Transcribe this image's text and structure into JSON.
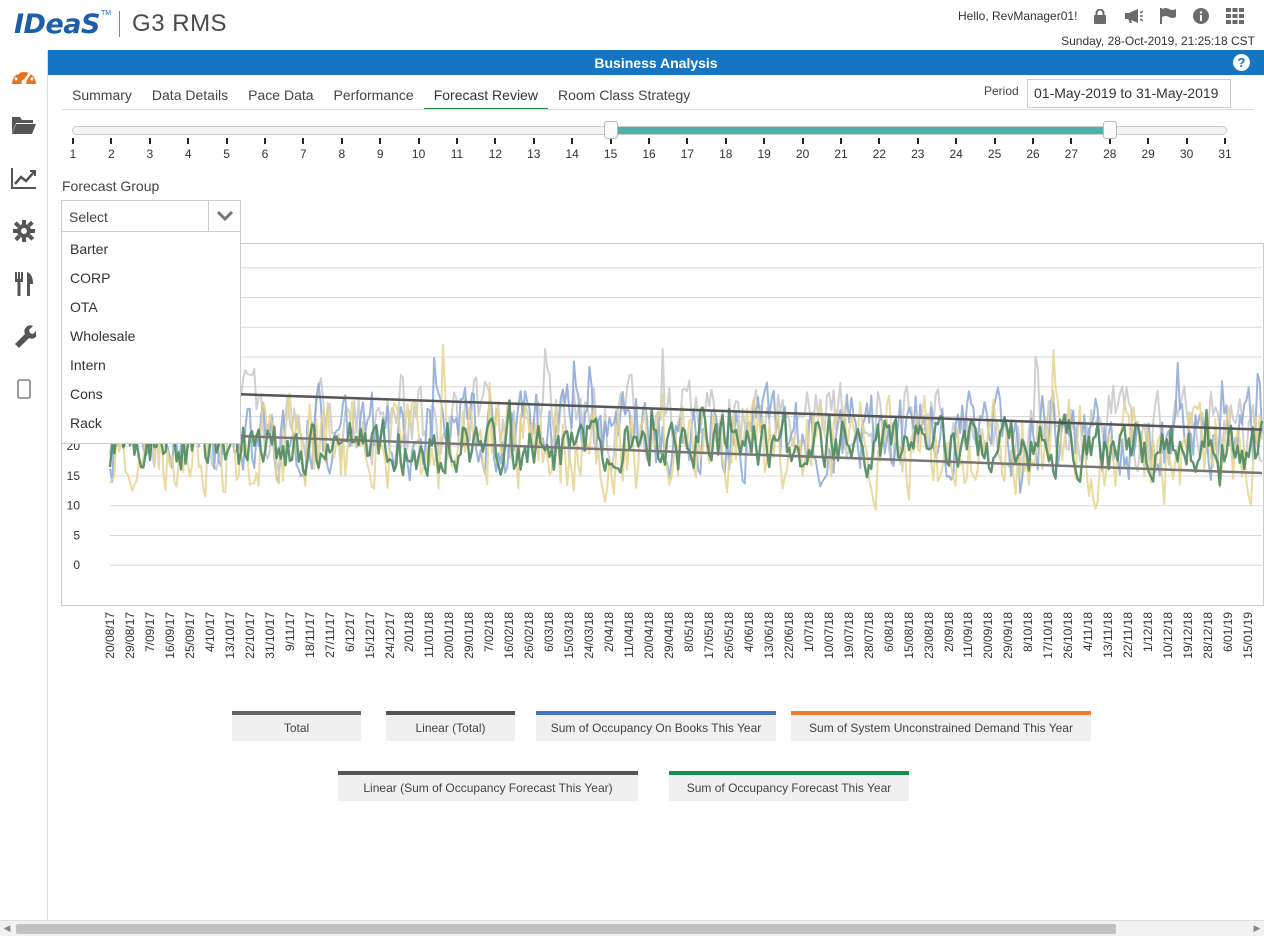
{
  "brand": {
    "logo_text": "IDeaS",
    "product": "G3 RMS"
  },
  "header": {
    "greeting": "Hello, RevManager01!",
    "datetime": "Sunday, 28-Oct-2019, 21:25:18 CST",
    "icons": [
      "lock-icon",
      "megaphone-icon",
      "flag-icon",
      "info-icon",
      "apps-grid-icon"
    ]
  },
  "sidebar": {
    "items": [
      {
        "icon": "dashboard-gauge-icon",
        "color": "#e8731f"
      },
      {
        "icon": "folder-icon",
        "color": "#555555"
      },
      {
        "icon": "chart-line-icon",
        "color": "#555555"
      },
      {
        "icon": "gear-icon",
        "color": "#555555"
      },
      {
        "icon": "fork-knife-icon",
        "color": "#555555"
      },
      {
        "icon": "wrench-icon",
        "color": "#555555"
      },
      {
        "icon": "mobile-icon",
        "color": "#555555"
      }
    ]
  },
  "page": {
    "title": "Business Analysis",
    "help": "?"
  },
  "tabs": [
    {
      "label": "Summary",
      "active": false
    },
    {
      "label": "Data Details",
      "active": false
    },
    {
      "label": "Pace Data",
      "active": false
    },
    {
      "label": "Performance",
      "active": false
    },
    {
      "label": "Forecast Review",
      "active": true
    },
    {
      "label": "Room Class Strategy",
      "active": false
    }
  ],
  "period": {
    "label": "Period",
    "value": "01-May-2019 to 31-May-2019"
  },
  "slider": {
    "ticks": [
      "1",
      "2",
      "3",
      "4",
      "5",
      "6",
      "7",
      "8",
      "9",
      "10",
      "11",
      "12",
      "13",
      "14",
      "15",
      "16",
      "17",
      "18",
      "19",
      "20",
      "21",
      "22",
      "23",
      "24",
      "25",
      "26",
      "27",
      "28",
      "29",
      "30",
      "31"
    ],
    "range_start": 15,
    "range_end": 28,
    "range_color": "#4fb2a8"
  },
  "forecast_group": {
    "label": "Forecast Group",
    "selected": "Select",
    "options": [
      "Barter",
      "CORP",
      "OTA",
      "Wholesale",
      "Intern",
      "Cons",
      "Rack"
    ]
  },
  "chart_data": {
    "type": "line",
    "y_ticks": [
      "20",
      "15",
      "10",
      "5",
      "0"
    ],
    "ylim": [
      -4,
      54
    ],
    "x_tick_labels": [
      "20/08/17",
      "29/08/17",
      "7/09/17",
      "16/09/17",
      "25/09/17",
      "4/10/17",
      "13/10/17",
      "22/10/17",
      "31/10/17",
      "9/11/17",
      "18/11/17",
      "27/11/17",
      "6/12/17",
      "15/12/17",
      "24/12/17",
      "2/01/18",
      "11/01/18",
      "20/01/18",
      "29/01/18",
      "7/02/18",
      "16/02/18",
      "26/02/18",
      "6/03/18",
      "15/03/18",
      "24/03/18",
      "2/04/18",
      "11/04/18",
      "20/04/18",
      "29/04/18",
      "8/05/18",
      "17/05/18",
      "26/05/18",
      "4/06/18",
      "13/06/18",
      "22/06/18",
      "1/07/18",
      "10/07/18",
      "19/07/18",
      "28/07/18",
      "6/08/18",
      "15/08/18",
      "23/08/18",
      "2/09/18",
      "11/09/18",
      "20/09/18",
      "29/09/18",
      "8/10/18",
      "17/10/18",
      "26/10/18",
      "4/11/18",
      "13/11/18",
      "22/11/18",
      "1/12/18",
      "10/12/18",
      "19/12/18",
      "28/12/18",
      "6/01/19",
      "15/01/19"
    ],
    "grid": true,
    "series": [
      {
        "name": "Total",
        "color": "#c8c8c8",
        "base": 24,
        "amp": 10
      },
      {
        "name": "Linear (Total)",
        "color": "#555555",
        "trend": [
          29.5,
          22.8
        ]
      },
      {
        "name": "Sum of Occupancy On Books This Year",
        "color": "#8aa8d8",
        "base": 22,
        "amp": 11
      },
      {
        "name": "Sum of System Unconstrained Demand This Year",
        "color": "#e5d38f",
        "base": 20,
        "amp": 12
      },
      {
        "name": "Linear (Sum of Occupancy Forecast This Year)",
        "color": "#777777",
        "trend": [
          22.5,
          15.5
        ]
      },
      {
        "name": "Sum of Occupancy Forecast This Year",
        "color": "#4e8a5e",
        "base": 20,
        "amp": 7
      }
    ]
  },
  "legend": [
    {
      "label": "Total",
      "color": "#666666"
    },
    {
      "label": "Linear (Total)",
      "color": "#555555"
    },
    {
      "label": "Sum of Occupancy On Books This Year",
      "color": "#4472c4"
    },
    {
      "label": "Sum of System Unconstrained Demand This Year",
      "color": "#ed7d31"
    },
    {
      "label": "Linear (Sum of Occupancy Forecast This Year)",
      "color": "#555555"
    },
    {
      "label": "Sum of Occupancy Forecast This Year",
      "color": "#109050"
    }
  ]
}
